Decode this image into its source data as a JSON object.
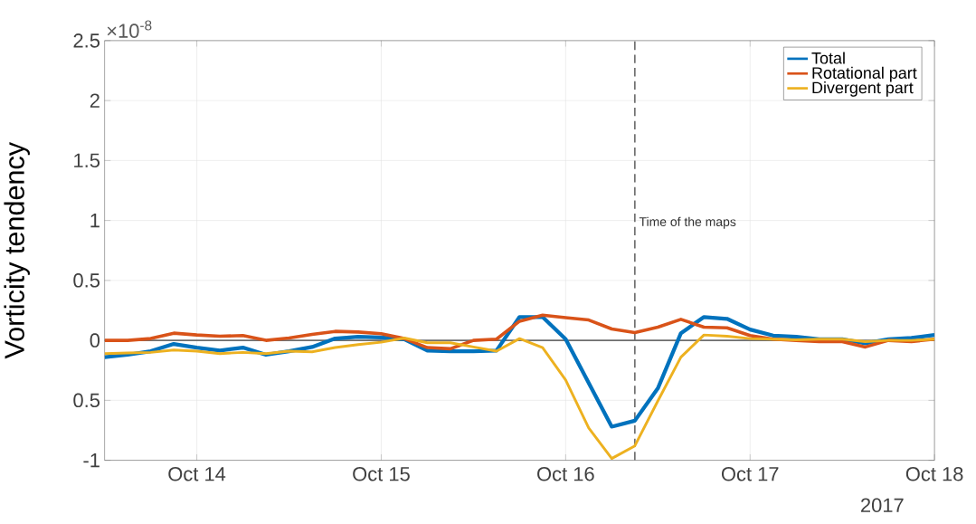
{
  "chart_data": {
    "type": "line",
    "ylabel": "Vorticity tendency",
    "xlabel": "2017",
    "annotations": [
      "×10$^{-8}$"
    ],
    "x": [
      "2017-10-13T12:00",
      "2017-10-13T15:00",
      "2017-10-13T18:00",
      "2017-10-13T21:00",
      "2017-10-14T00:00",
      "2017-10-14T03:00",
      "2017-10-14T06:00",
      "2017-10-14T09:00",
      "2017-10-14T12:00",
      "2017-10-14T15:00",
      "2017-10-14T18:00",
      "2017-10-14T21:00",
      "2017-10-15T00:00",
      "2017-10-15T03:00",
      "2017-10-15T06:00",
      "2017-10-15T09:00",
      "2017-10-15T12:00",
      "2017-10-15T15:00",
      "2017-10-15T18:00",
      "2017-10-15T21:00",
      "2017-10-16T00:00",
      "2017-10-16T03:00",
      "2017-10-16T06:00",
      "2017-10-16T09:00",
      "2017-10-16T12:00",
      "2017-10-16T15:00",
      "2017-10-16T18:00",
      "2017-10-16T21:00",
      "2017-10-17T00:00",
      "2017-10-17T03:00",
      "2017-10-17T06:00",
      "2017-10-17T09:00",
      "2017-10-17T12:00",
      "2017-10-17T15:00",
      "2017-10-17T18:00",
      "2017-10-17T21:00",
      "2017-10-18T00:00"
    ],
    "series": [
      {
        "name": "Total",
        "color": "#0072bd",
        "values": [
          -0.14,
          -0.12,
          -0.09,
          -0.03,
          -0.06,
          -0.085,
          -0.06,
          -0.12,
          -0.09,
          -0.055,
          0.015,
          0.03,
          0.025,
          0.01,
          -0.085,
          -0.09,
          -0.09,
          -0.085,
          0.195,
          0.195,
          0.01,
          -0.355,
          -0.72,
          -0.67,
          -0.4,
          0.06,
          0.195,
          0.18,
          0.09,
          0.04,
          0.03,
          0.01,
          0.01,
          -0.025,
          0.01,
          0.02,
          0.045
        ]
      },
      {
        "name": "Rotational part",
        "color": "#d95319",
        "values": [
          0,
          0,
          0.015,
          0.06,
          0.045,
          0.035,
          0.04,
          0,
          0.02,
          0.05,
          0.075,
          0.07,
          0.055,
          0.015,
          -0.06,
          -0.07,
          0,
          0.01,
          0.16,
          0.21,
          0.19,
          0.17,
          0.095,
          0.065,
          0.11,
          0.175,
          0.11,
          0.105,
          0.04,
          0.01,
          0,
          -0.01,
          -0.01,
          -0.055,
          0,
          -0.01,
          0.01
        ]
      },
      {
        "name": "Divergent part",
        "color": "#edb120",
        "values": [
          -0.11,
          -0.105,
          -0.1,
          -0.08,
          -0.09,
          -0.11,
          -0.1,
          -0.11,
          -0.09,
          -0.095,
          -0.06,
          -0.035,
          -0.015,
          0.02,
          -0.02,
          -0.02,
          -0.055,
          -0.09,
          0.015,
          -0.06,
          -0.33,
          -0.73,
          -0.985,
          -0.88,
          -0.505,
          -0.14,
          0.045,
          0.035,
          0.015,
          0.01,
          0.005,
          0.01,
          0.01,
          -0.01,
          0,
          0,
          0.01
        ]
      }
    ],
    "xlim": [
      "2017-10-13T12:00",
      "2017-10-18T00:00"
    ],
    "xticks": [
      {
        "value": "2017-10-14",
        "label": "Oct 14"
      },
      {
        "value": "2017-10-15",
        "label": "Oct 15"
      },
      {
        "value": "2017-10-16",
        "label": "Oct 16"
      },
      {
        "value": "2017-10-17",
        "label": "Oct 17"
      },
      {
        "value": "2017-10-18",
        "label": "Oct 18"
      }
    ],
    "ylim": [
      -1,
      2.5
    ],
    "yticks": [
      -1,
      {
        "value": -0.5,
        "label": "0.5"
      },
      0,
      0.5,
      1,
      1.5,
      2,
      2.5
    ],
    "ref_lines": [
      {
        "axis": "y",
        "value": 0,
        "color": "#6e6e6e",
        "line_style": "solid"
      },
      {
        "axis": "x",
        "value": "2017-10-16T09:00",
        "label": "Time of the maps",
        "color": "#707070",
        "line_style": "dashed"
      }
    ],
    "grid": true,
    "legend": "top right",
    "line_style": "solid"
  }
}
